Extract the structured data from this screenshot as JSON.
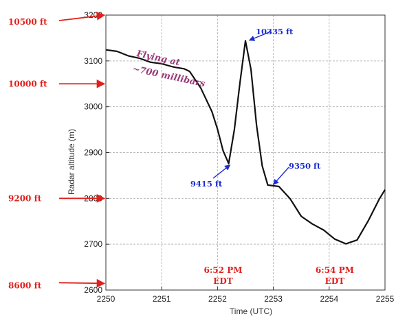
{
  "chart_data": {
    "type": "line",
    "xlabel": "Time (UTC)",
    "ylabel": "Radar altitude (m)",
    "xlim": [
      2250,
      2255
    ],
    "ylim": [
      2600,
      3200
    ],
    "x_ticks": [
      "2250",
      "2251",
      "2252",
      "2253",
      "2254",
      "2255"
    ],
    "y_ticks": [
      "2600",
      "2700",
      "2800",
      "2900",
      "3000",
      "3100",
      "3200"
    ],
    "grid": true,
    "series": [
      {
        "points": [
          [
            2250.0,
            3125
          ],
          [
            2250.2,
            3120
          ],
          [
            2250.4,
            3112
          ],
          [
            2250.6,
            3105
          ],
          [
            2250.8,
            3098
          ],
          [
            2251.0,
            3093
          ],
          [
            2251.2,
            3088
          ],
          [
            2251.4,
            3082
          ],
          [
            2251.5,
            3078
          ],
          [
            2251.7,
            3040
          ],
          [
            2251.9,
            2990
          ],
          [
            2252.0,
            2950
          ],
          [
            2252.1,
            2905
          ],
          [
            2252.2,
            2875
          ],
          [
            2252.3,
            2950
          ],
          [
            2252.4,
            3050
          ],
          [
            2252.5,
            3145
          ],
          [
            2252.6,
            3080
          ],
          [
            2252.7,
            2960
          ],
          [
            2252.8,
            2870
          ],
          [
            2252.9,
            2830
          ],
          [
            2253.1,
            2825
          ],
          [
            2253.3,
            2800
          ],
          [
            2253.5,
            2760
          ],
          [
            2253.7,
            2745
          ],
          [
            2253.9,
            2730
          ],
          [
            2254.1,
            2712
          ],
          [
            2254.3,
            2700
          ],
          [
            2254.5,
            2710
          ],
          [
            2254.7,
            2750
          ],
          [
            2254.9,
            2800
          ],
          [
            2255.0,
            2818
          ]
        ]
      }
    ],
    "annotations": {
      "left_altitudes": [
        {
          "label": "10500 ft",
          "value": 3200
        },
        {
          "label": "10000 ft",
          "value": 3050
        },
        {
          "label": "9200 ft",
          "value": 2800
        },
        {
          "label": "8600 ft",
          "value": 2610
        }
      ],
      "points": [
        {
          "label": "10335 ft",
          "x": 2252.52,
          "y": 3148
        },
        {
          "label": "9415 ft",
          "x": 2252.2,
          "y": 2873
        },
        {
          "label": "9350 ft",
          "x": 2252.95,
          "y": 2830
        }
      ],
      "flight_note_line1": "Flying at",
      "flight_note_line2": "~700 millibars",
      "time_notes": [
        {
          "line1": "6:52 PM",
          "line2": "EDT",
          "x": 2252.1
        },
        {
          "line1": "6:54 PM",
          "line2": "EDT",
          "x": 2254.1
        }
      ]
    },
    "colors": {
      "line": "#111111",
      "grid": "#bbbbbb",
      "red": "#e0201c",
      "blue": "#1a2bd0",
      "purple": "#9b3b78"
    }
  }
}
